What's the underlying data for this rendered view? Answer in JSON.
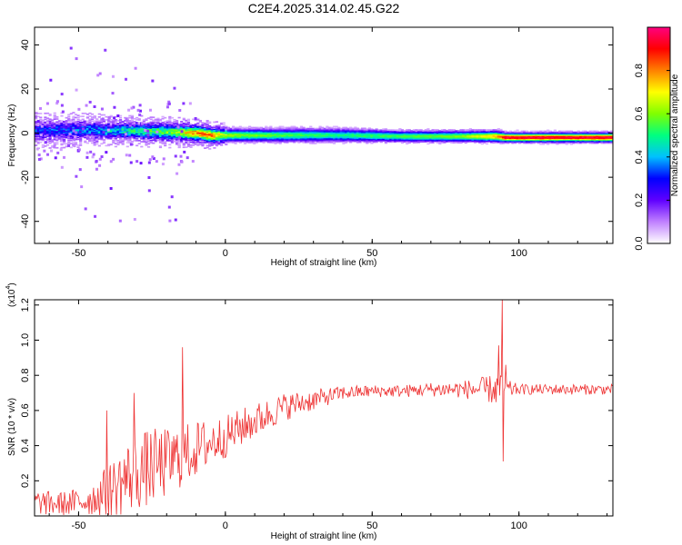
{
  "title": "C2E4.2025.314.02.45.G22",
  "chart_data": [
    {
      "type": "heatmap",
      "xlabel": "Height of straight line (km)",
      "ylabel": "Frequency (Hz)",
      "xlim": [
        -65,
        132
      ],
      "ylim": [
        -50,
        48
      ],
      "x_ticks": [
        -50,
        0,
        50,
        100
      ],
      "y_ticks": [
        -40,
        -20,
        0,
        20,
        40
      ],
      "colorbar": {
        "label": "Normalized spectral amplitude",
        "range": [
          0,
          1
        ],
        "ticks": [
          "0.0",
          "0.2",
          "0.4",
          "0.6",
          "0.8"
        ],
        "tick_values": [
          0.0,
          0.2,
          0.4,
          0.6,
          0.8
        ],
        "colors": [
          "#ffffff",
          "#c080ff",
          "#6000ff",
          "#0000ff",
          "#00c0ff",
          "#00ff80",
          "#80ff00",
          "#ffff00",
          "#ff8000",
          "#ff0000",
          "#ff0080"
        ]
      },
      "ridge": {
        "x": [
          -65,
          -50,
          -40,
          -30,
          -20,
          -10,
          -5,
          0,
          20,
          40,
          60,
          80,
          92,
          95,
          100,
          132
        ],
        "center_freq": [
          1,
          1.5,
          1,
          1,
          0.5,
          0,
          -1,
          -1,
          -1,
          -1,
          -1.5,
          -1.5,
          -1.5,
          -2,
          -2,
          -2
        ],
        "half_width": [
          5,
          5,
          4.5,
          4.5,
          4.5,
          4,
          4,
          3.5,
          3.5,
          3.5,
          3,
          3,
          3,
          2.5,
          2.5,
          2.5
        ],
        "core_amplitude": [
          0.3,
          0.35,
          0.4,
          0.5,
          0.55,
          0.8,
          0.8,
          0.6,
          0.55,
          0.5,
          0.55,
          0.6,
          0.75,
          0.95,
          0.95,
          0.95
        ]
      }
    },
    {
      "type": "line",
      "xlabel": "Height of straight line (km)",
      "ylabel": "SNR (10 * v/v)",
      "scale_label": "(x10",
      "scale_exponent": "4",
      "xlim": [
        -65,
        132
      ],
      "ylim": [
        0,
        1.23
      ],
      "x_ticks": [
        -50,
        0,
        50,
        100
      ],
      "y_ticks": [
        "0.2",
        "0.4",
        "0.6",
        "0.8",
        "1.0",
        "1.2"
      ],
      "y_tick_values": [
        0.2,
        0.4,
        0.6,
        0.8,
        1.0,
        1.2
      ],
      "line_color": "#ee3333",
      "series": [
        {
          "x": [
            -65,
            -60,
            -55,
            -50,
            -45,
            -40,
            -35,
            -30,
            -25,
            -20,
            -15,
            -10,
            -5,
            0,
            5,
            10,
            15,
            20,
            25,
            30,
            35,
            40,
            50,
            60,
            70,
            80,
            85,
            90,
            93,
            95,
            100,
            110,
            120,
            132
          ],
          "y": [
            0.08,
            0.07,
            0.07,
            0.08,
            0.1,
            0.14,
            0.2,
            0.25,
            0.28,
            0.3,
            0.34,
            0.38,
            0.42,
            0.45,
            0.5,
            0.54,
            0.58,
            0.62,
            0.64,
            0.66,
            0.68,
            0.7,
            0.71,
            0.71,
            0.72,
            0.72,
            0.72,
            0.72,
            0.72,
            0.72,
            0.72,
            0.72,
            0.72,
            0.72
          ],
          "noise": [
            0.07,
            0.07,
            0.07,
            0.08,
            0.1,
            0.15,
            0.2,
            0.22,
            0.22,
            0.2,
            0.18,
            0.16,
            0.14,
            0.12,
            0.11,
            0.1,
            0.09,
            0.08,
            0.07,
            0.06,
            0.05,
            0.04,
            0.035,
            0.035,
            0.04,
            0.05,
            0.06,
            0.08,
            0.1,
            0.06,
            0.03,
            0.03,
            0.03,
            0.03
          ]
        }
      ],
      "spikes": [
        {
          "x": -40.5,
          "y": 0.6
        },
        {
          "x": -31,
          "y": 0.7
        },
        {
          "x": -14.5,
          "y": 0.96
        },
        {
          "x": 93,
          "y": 0.97
        },
        {
          "x": 94.2,
          "y": 1.23
        },
        {
          "x": 94.6,
          "y": 0.31
        },
        {
          "x": 95.5,
          "y": 0.86
        }
      ]
    }
  ]
}
